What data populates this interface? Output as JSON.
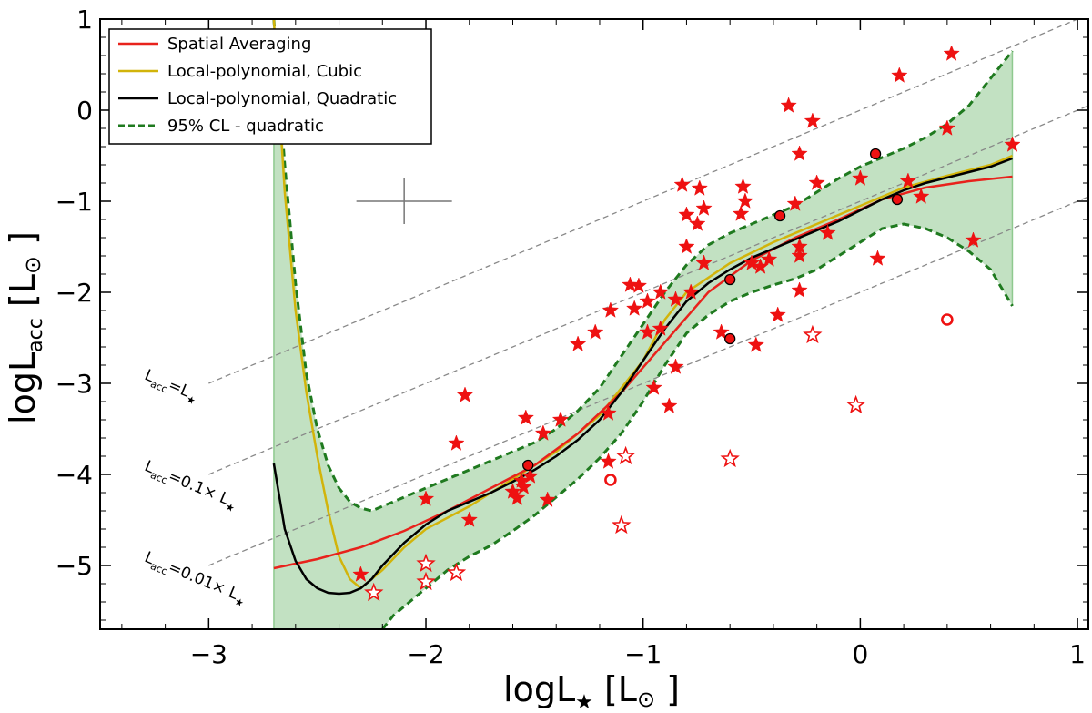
{
  "chart_data": {
    "type": "scatter",
    "title": "",
    "xlabel": {
      "prefix": "logL",
      "sub": "★",
      "unit": "[L",
      "unit_sub": "⊙",
      "unit_close": "]"
    },
    "ylabel": {
      "prefix": "logL",
      "sub": "acc",
      "unit": "[L",
      "unit_sub": "⊙",
      "unit_close": "]"
    },
    "xlim": [
      -3.5,
      1.05
    ],
    "ylim": [
      -5.7,
      1.0
    ],
    "xticks": [
      -3,
      -2,
      -1,
      0,
      1
    ],
    "yticks": [
      1,
      0,
      -1,
      -2,
      -3,
      -4,
      -5
    ],
    "xtick_labels": [
      "−3",
      "−2",
      "−1",
      "0",
      "1"
    ],
    "ytick_labels": [
      "1",
      "0",
      "−1",
      "−2",
      "−3",
      "−4",
      "−5"
    ],
    "colors": {
      "spatial": "#e8221c",
      "cubic": "#d2b40a",
      "quadratic": "#000000",
      "ci_line": "#1f7a1f",
      "ci_fill": "#8fc98f",
      "star": "#ee1111",
      "guide": "#888888"
    },
    "legend": {
      "position": "top-left",
      "entries": [
        {
          "key": "spatial",
          "label": "Spatial Averaging",
          "style": "solid"
        },
        {
          "key": "cubic",
          "label": "Local-polynomial, Cubic",
          "style": "solid"
        },
        {
          "key": "quadratic",
          "label": "Local-polynomial, Quadratic",
          "style": "solid"
        },
        {
          "key": "ci",
          "label": "95% CL - quadratic",
          "style": "dashed"
        }
      ]
    },
    "guide_lines": [
      {
        "name": "Lacc=L*",
        "offset": 0,
        "label_main": "L",
        "label_sub": "acc",
        "label_rest": "=L",
        "label_star": "★"
      },
      {
        "name": "Lacc=0.1xL*",
        "offset": -1,
        "label_main": "L",
        "label_sub": "acc",
        "label_rest": "=0.1× L",
        "label_star": "★"
      },
      {
        "name": "Lacc=0.01xL*",
        "offset": -2,
        "label_main": "L",
        "label_sub": "acc",
        "label_rest": "=0.01× L",
        "label_star": "★"
      }
    ],
    "guide_line_x_range": [
      -3.0,
      1.05
    ],
    "error_bar": {
      "x": -2.1,
      "y": -1.0,
      "xerr": 0.22,
      "yerr": 0.25
    },
    "series": [
      {
        "name": "Spatial Averaging",
        "key": "spatial",
        "x": [
          -2.7,
          -2.5,
          -2.3,
          -2.1,
          -1.9,
          -1.7,
          -1.5,
          -1.3,
          -1.1,
          -0.9,
          -0.7,
          -0.5,
          -0.3,
          -0.1,
          0.1,
          0.3,
          0.5,
          0.7
        ],
        "y": [
          -5.03,
          -4.93,
          -4.8,
          -4.62,
          -4.4,
          -4.15,
          -3.9,
          -3.55,
          -3.1,
          -2.55,
          -2.0,
          -1.65,
          -1.4,
          -1.2,
          -0.98,
          -0.85,
          -0.78,
          -0.73
        ]
      },
      {
        "name": "Local-polynomial, Cubic",
        "key": "cubic",
        "x": [
          -2.7,
          -2.65,
          -2.6,
          -2.55,
          -2.5,
          -2.45,
          -2.4,
          -2.35,
          -2.3,
          -2.2,
          -2.1,
          -2.0,
          -1.8,
          -1.6,
          -1.4,
          -1.2,
          -1.0,
          -0.9,
          -0.8,
          -0.6,
          -0.4,
          -0.2,
          0.0,
          0.2,
          0.4,
          0.6,
          0.7
        ],
        "y": [
          1.0,
          -0.9,
          -2.2,
          -3.1,
          -3.8,
          -4.4,
          -4.9,
          -5.15,
          -5.25,
          -5.05,
          -4.8,
          -4.6,
          -4.35,
          -4.05,
          -3.75,
          -3.35,
          -2.75,
          -2.3,
          -2.0,
          -1.68,
          -1.45,
          -1.25,
          -1.05,
          -0.85,
          -0.72,
          -0.6,
          -0.5
        ]
      },
      {
        "name": "Local-polynomial, Quadratic",
        "key": "quadratic",
        "x": [
          -2.7,
          -2.65,
          -2.6,
          -2.55,
          -2.5,
          -2.45,
          -2.4,
          -2.35,
          -2.3,
          -2.25,
          -2.2,
          -2.1,
          -2.0,
          -1.9,
          -1.8,
          -1.7,
          -1.6,
          -1.5,
          -1.4,
          -1.3,
          -1.2,
          -1.1,
          -1.0,
          -0.9,
          -0.8,
          -0.7,
          -0.6,
          -0.5,
          -0.4,
          -0.3,
          -0.2,
          -0.1,
          0.0,
          0.1,
          0.2,
          0.3,
          0.4,
          0.5,
          0.6,
          0.7
        ],
        "y": [
          -3.88,
          -4.6,
          -4.95,
          -5.15,
          -5.25,
          -5.3,
          -5.31,
          -5.3,
          -5.25,
          -5.15,
          -5.0,
          -4.75,
          -4.55,
          -4.4,
          -4.3,
          -4.2,
          -4.08,
          -3.95,
          -3.8,
          -3.62,
          -3.4,
          -3.1,
          -2.75,
          -2.4,
          -2.1,
          -1.9,
          -1.75,
          -1.62,
          -1.52,
          -1.42,
          -1.32,
          -1.22,
          -1.1,
          -0.98,
          -0.88,
          -0.8,
          -0.74,
          -0.68,
          -0.62,
          -0.53
        ]
      },
      {
        "name": "95% CL upper",
        "key": "ci_upper",
        "x": [
          -2.7,
          -2.65,
          -2.6,
          -2.55,
          -2.5,
          -2.45,
          -2.4,
          -2.35,
          -2.3,
          -2.25,
          -2.2,
          -2.1,
          -2.0,
          -1.9,
          -1.8,
          -1.7,
          -1.6,
          -1.5,
          -1.4,
          -1.3,
          -1.2,
          -1.1,
          -1.0,
          -0.9,
          -0.8,
          -0.7,
          -0.6,
          -0.5,
          -0.4,
          -0.3,
          -0.2,
          -0.1,
          0.0,
          0.1,
          0.2,
          0.3,
          0.4,
          0.5,
          0.6,
          0.7
        ],
        "y": [
          1.0,
          -0.6,
          -1.9,
          -2.9,
          -3.5,
          -3.9,
          -4.15,
          -4.3,
          -4.37,
          -4.4,
          -4.35,
          -4.25,
          -4.15,
          -4.05,
          -3.95,
          -3.85,
          -3.75,
          -3.65,
          -3.5,
          -3.3,
          -3.05,
          -2.7,
          -2.35,
          -2.0,
          -1.7,
          -1.48,
          -1.35,
          -1.25,
          -1.15,
          -1.05,
          -0.9,
          -0.75,
          -0.62,
          -0.52,
          -0.42,
          -0.3,
          -0.15,
          0.05,
          0.35,
          0.65
        ]
      },
      {
        "name": "95% CL lower",
        "key": "ci_lower",
        "x": [
          -2.2,
          -2.15,
          -2.1,
          -2.0,
          -1.9,
          -1.8,
          -1.7,
          -1.6,
          -1.5,
          -1.4,
          -1.3,
          -1.2,
          -1.1,
          -1.0,
          -0.9,
          -0.8,
          -0.7,
          -0.6,
          -0.5,
          -0.4,
          -0.3,
          -0.2,
          -0.1,
          0.0,
          0.1,
          0.2,
          0.3,
          0.4,
          0.5,
          0.6,
          0.65,
          0.7
        ],
        "y": [
          -5.7,
          -5.55,
          -5.45,
          -5.25,
          -5.05,
          -4.9,
          -4.78,
          -4.62,
          -4.45,
          -4.25,
          -4.05,
          -3.82,
          -3.55,
          -3.2,
          -2.8,
          -2.45,
          -2.25,
          -2.1,
          -2.0,
          -1.92,
          -1.85,
          -1.75,
          -1.6,
          -1.45,
          -1.3,
          -1.25,
          -1.3,
          -1.4,
          -1.55,
          -1.75,
          -1.95,
          -2.15
        ]
      }
    ],
    "stars_filled": [
      [
        0.42,
        0.62
      ],
      [
        0.18,
        0.38
      ],
      [
        -0.33,
        0.05
      ],
      [
        -0.22,
        -0.12
      ],
      [
        0.4,
        -0.2
      ],
      [
        0.7,
        -0.38
      ],
      [
        -0.28,
        -0.48
      ],
      [
        -0.2,
        -0.8
      ],
      [
        0.22,
        -0.78
      ],
      [
        0.0,
        -0.75
      ],
      [
        0.28,
        -0.95
      ],
      [
        -0.82,
        -0.82
      ],
      [
        -0.74,
        -0.86
      ],
      [
        -0.54,
        -0.84
      ],
      [
        -0.72,
        -1.08
      ],
      [
        -0.53,
        -1.0
      ],
      [
        -0.8,
        -1.15
      ],
      [
        -0.55,
        -1.14
      ],
      [
        -0.75,
        -1.25
      ],
      [
        -0.3,
        -1.03
      ],
      [
        -0.15,
        -1.35
      ],
      [
        -0.8,
        -1.5
      ],
      [
        -0.28,
        -1.5
      ],
      [
        -0.28,
        -1.6
      ],
      [
        -0.42,
        -1.64
      ],
      [
        -0.5,
        -1.68
      ],
      [
        -0.72,
        -1.68
      ],
      [
        0.08,
        -1.63
      ],
      [
        -0.46,
        -1.72
      ],
      [
        0.52,
        -1.43
      ],
      [
        -1.06,
        -1.92
      ],
      [
        -1.02,
        -1.93
      ],
      [
        -0.98,
        -2.1
      ],
      [
        -0.92,
        -2.0
      ],
      [
        -0.85,
        -2.08
      ],
      [
        -0.78,
        -2.0
      ],
      [
        -1.15,
        -2.2
      ],
      [
        -1.04,
        -2.18
      ],
      [
        -0.28,
        -1.98
      ],
      [
        -0.38,
        -2.25
      ],
      [
        -1.22,
        -2.44
      ],
      [
        -0.98,
        -2.44
      ],
      [
        -0.92,
        -2.4
      ],
      [
        -0.64,
        -2.44
      ],
      [
        -1.3,
        -2.57
      ],
      [
        -0.48,
        -2.58
      ],
      [
        -0.85,
        -2.82
      ],
      [
        -0.95,
        -3.05
      ],
      [
        -0.88,
        -3.25
      ],
      [
        -1.82,
        -3.13
      ],
      [
        -1.16,
        -3.33
      ],
      [
        -1.54,
        -3.38
      ],
      [
        -1.46,
        -3.55
      ],
      [
        -1.38,
        -3.4
      ],
      [
        -1.86,
        -3.66
      ],
      [
        -1.16,
        -3.86
      ],
      [
        -1.56,
        -4.07
      ],
      [
        -1.6,
        -4.19
      ],
      [
        -1.52,
        -4.02
      ],
      [
        -1.55,
        -4.14
      ],
      [
        -1.58,
        -4.26
      ],
      [
        -1.44,
        -4.28
      ],
      [
        -2.0,
        -4.27
      ],
      [
        -1.8,
        -4.5
      ],
      [
        -2.3,
        -5.1
      ]
    ],
    "stars_open": [
      [
        -2.24,
        -5.3
      ],
      [
        -2.0,
        -4.98
      ],
      [
        -2.0,
        -5.18
      ],
      [
        -1.86,
        -5.08
      ],
      [
        -1.08,
        -3.8
      ],
      [
        -1.1,
        -4.56
      ],
      [
        -0.6,
        -3.83
      ],
      [
        -0.02,
        -3.24
      ],
      [
        -0.22,
        -2.47
      ]
    ],
    "circles_filled": [
      [
        0.07,
        -0.48
      ],
      [
        0.17,
        -0.98
      ],
      [
        -0.37,
        -1.16
      ],
      [
        -0.6,
        -1.86
      ],
      [
        -0.6,
        -2.51
      ],
      [
        -1.53,
        -3.9
      ]
    ],
    "circles_open": [
      [
        0.4,
        -2.3
      ],
      [
        -1.15,
        -4.06
      ]
    ]
  }
}
